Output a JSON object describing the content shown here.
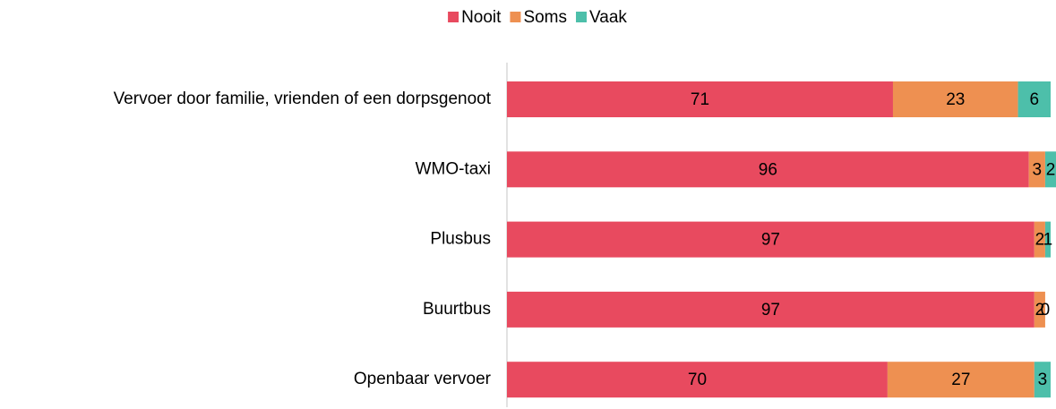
{
  "chart_data": {
    "type": "stacked-barh",
    "categories": [
      "Vervoer door familie, vrienden of een dorpsgenoot",
      "WMO-taxi",
      "Plusbus",
      "Buurtbus",
      "Openbaar vervoer"
    ],
    "series": [
      {
        "name": "Nooit",
        "color": "#e84a5f",
        "values": [
          71,
          96,
          97,
          97,
          70
        ]
      },
      {
        "name": "Soms",
        "color": "#ee9051",
        "values": [
          23,
          3,
          2,
          2,
          27
        ]
      },
      {
        "name": "Vaak",
        "color": "#4dbfaa",
        "values": [
          6,
          2,
          1,
          0,
          3
        ]
      }
    ],
    "xlim": [
      0,
      100
    ],
    "legend": "top"
  }
}
